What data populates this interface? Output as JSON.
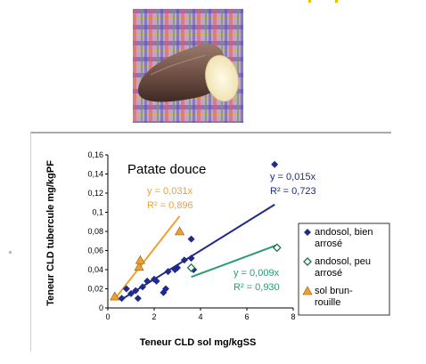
{
  "image": {
    "icon": "sweet-potato-on-plaid-cloth"
  },
  "chart_data": {
    "type": "scatter",
    "title": "Patate douce",
    "xlabel": "Teneur CLD sol  mg/kgSS",
    "ylabel": "Teneur CLD tubercule mg/kgPF",
    "xlim": [
      0,
      8
    ],
    "ylim": [
      0,
      0.16
    ],
    "x_ticks": [
      "0",
      "2",
      "4",
      "6",
      "8"
    ],
    "y_ticks": [
      "0",
      "0,02",
      "0,04",
      "0,06",
      "0,08",
      "0,1",
      "0,12",
      "0,14",
      "0,16"
    ],
    "x_tick_values": [
      0,
      2,
      4,
      6,
      8
    ],
    "y_tick_values": [
      0,
      0.02,
      0.04,
      0.06,
      0.08,
      0.1,
      0.12,
      0.14,
      0.16
    ],
    "grid": false,
    "legend_position": "right",
    "series": [
      {
        "name": "andosol, bien arrosé",
        "marker": "filled-diamond",
        "color": "#1f2a8a",
        "points": [
          [
            0.6,
            0.01
          ],
          [
            0.8,
            0.02
          ],
          [
            1.0,
            0.015
          ],
          [
            1.2,
            0.018
          ],
          [
            1.3,
            0.01
          ],
          [
            1.5,
            0.022
          ],
          [
            1.7,
            0.028
          ],
          [
            2.0,
            0.03
          ],
          [
            2.1,
            0.028
          ],
          [
            2.4,
            0.016
          ],
          [
            2.5,
            0.02
          ],
          [
            2.6,
            0.038
          ],
          [
            2.9,
            0.04
          ],
          [
            3.0,
            0.042
          ],
          [
            3.3,
            0.05
          ],
          [
            3.6,
            0.052
          ],
          [
            3.6,
            0.072
          ],
          [
            3.7,
            0.04
          ],
          [
            7.2,
            0.15
          ]
        ],
        "fit_label": [
          "y = 0,015x",
          "R² = 0,723"
        ],
        "fit_slope": 0.015,
        "fit_color": "#1f2a8a"
      },
      {
        "name": "andosol, peu arrosé",
        "marker": "open-diamond",
        "color": "#1f6b57",
        "points": [
          [
            3.6,
            0.042
          ],
          [
            7.3,
            0.063
          ]
        ],
        "fit_label": [
          "y = 0,009x",
          "R² = 0,930"
        ],
        "fit_slope": 0.009,
        "fit_color": "#2a9a7a"
      },
      {
        "name": "sol brun-rouille",
        "marker": "filled-triangle",
        "color": "#f0a030",
        "points": [
          [
            0.3,
            0.012
          ],
          [
            1.35,
            0.043
          ],
          [
            1.4,
            0.05
          ],
          [
            3.1,
            0.08
          ]
        ],
        "fit_label": [
          "y = 0,031x",
          "R² = 0,896"
        ],
        "fit_slope": 0.031,
        "fit_color": "#f0a030"
      }
    ],
    "legend": {
      "items": [
        {
          "lines": [
            "andosol, bien",
            "arrosé"
          ]
        },
        {
          "lines": [
            "andosol, peu",
            "arrosé"
          ]
        },
        {
          "lines": [
            "sol brun-",
            "rouille"
          ]
        }
      ]
    }
  }
}
